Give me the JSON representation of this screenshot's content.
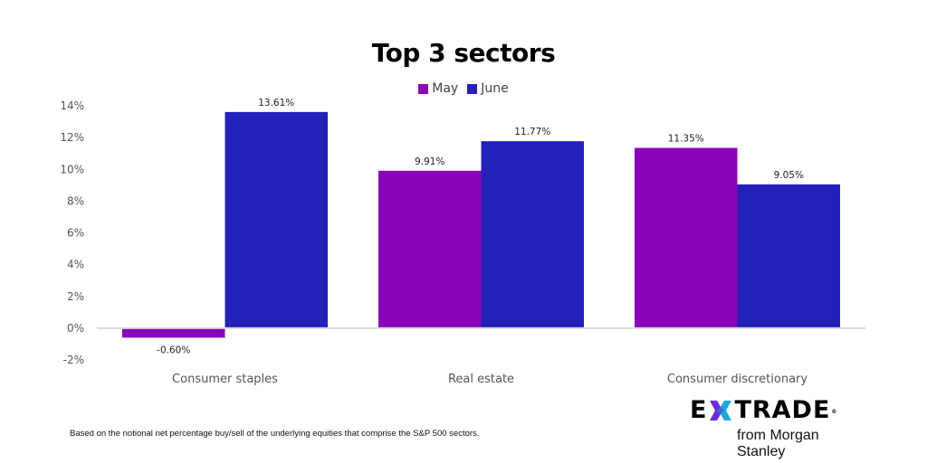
{
  "chart_data": {
    "type": "bar",
    "title": "Top 3 sectors",
    "xlabel": "",
    "ylabel": "",
    "categories": [
      "Consumer staples",
      "Real estate",
      "Consumer discretionary"
    ],
    "series": [
      {
        "name": "May",
        "color": "#8A05B8",
        "values": [
          -0.6,
          9.91,
          11.35
        ],
        "labels": [
          "-0.60%",
          "9.91%",
          "11.35%"
        ]
      },
      {
        "name": "June",
        "color": "#2321BA",
        "values": [
          13.61,
          11.77,
          9.05
        ],
        "labels": [
          "13.61%",
          "11.77%",
          "9.05%"
        ]
      }
    ],
    "ylim": [
      -2,
      14
    ],
    "yticks": [
      14,
      12,
      10,
      8,
      6,
      4,
      2,
      0,
      -2
    ],
    "ytick_labels": [
      "14%",
      "12%",
      "10%",
      "8%",
      "6%",
      "4%",
      "2%",
      "0%",
      "-2%"
    ],
    "grid": false,
    "legend_position": "top-center"
  },
  "footnote": "Based on the notional net percentage buy/sell of the underlying equities that comprise the S&P 500 sectors.",
  "logo": {
    "left": "E",
    "right": "TRADE",
    "registered": "®",
    "tagline": "from Morgan Stanley",
    "colors": {
      "star_left": "#6A2BD9",
      "star_right": "#1AA7E0"
    }
  },
  "colors": {
    "zero_line": "#D9D9D9"
  }
}
